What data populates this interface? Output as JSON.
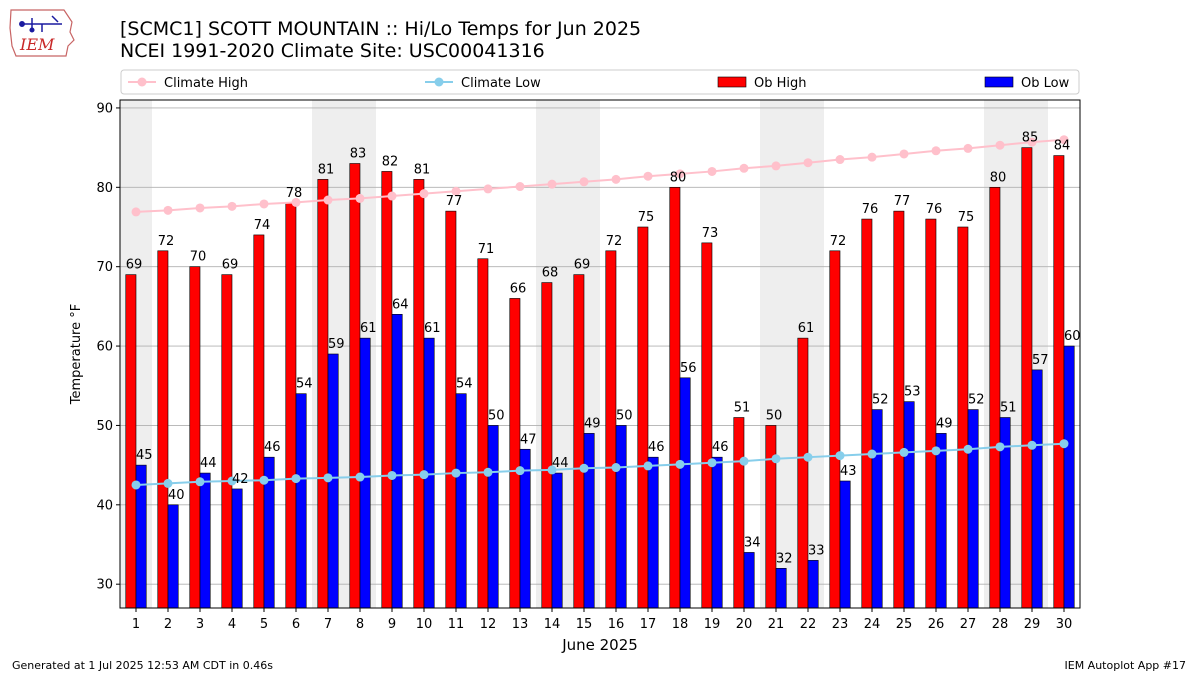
{
  "header": {
    "title": "[SCMC1] SCOTT MOUNTAIN :: Hi/Lo Temps for Jun 2025",
    "subtitle": "NCEI 1991-2020 Climate Site: USC00041316",
    "logo_text": "IEM"
  },
  "footer": {
    "generated": "Generated at 1 Jul 2025 12:53 AM CDT in 0.46s",
    "app": "IEM Autoplot App #17"
  },
  "colors": {
    "ob_high": "#ff0000",
    "ob_low": "#0000ff",
    "climate_high": "#ffc0cb",
    "climate_low": "#87ceeb",
    "weekend_band": "#eeeeee",
    "grid": "#b0b0b0"
  },
  "chart_data": {
    "type": "bar",
    "xlabel": "June 2025",
    "ylabel": "Temperature °F",
    "ylim": [
      27,
      91
    ],
    "yticks": [
      30,
      40,
      50,
      60,
      70,
      80,
      90
    ],
    "grid": true,
    "legend": "top",
    "weekend_days": [
      1,
      7,
      8,
      14,
      15,
      21,
      22,
      28,
      29
    ],
    "categories": [
      "1",
      "2",
      "3",
      "4",
      "5",
      "6",
      "7",
      "8",
      "9",
      "10",
      "11",
      "12",
      "13",
      "14",
      "15",
      "16",
      "17",
      "18",
      "19",
      "20",
      "21",
      "22",
      "23",
      "24",
      "25",
      "26",
      "27",
      "28",
      "29",
      "30"
    ],
    "series": [
      {
        "name": "Ob High",
        "kind": "bar",
        "values": [
          69,
          72,
          70,
          69,
          74,
          78,
          81,
          83,
          82,
          81,
          77,
          71,
          66,
          68,
          69,
          72,
          75,
          80,
          73,
          51,
          50,
          61,
          72,
          76,
          77,
          76,
          75,
          80,
          85,
          84
        ]
      },
      {
        "name": "Ob Low",
        "kind": "bar",
        "values": [
          45,
          40,
          44,
          42,
          46,
          54,
          59,
          61,
          64,
          61,
          54,
          50,
          47,
          44,
          49,
          50,
          46,
          56,
          46,
          34,
          32,
          33,
          43,
          52,
          53,
          49,
          52,
          51,
          57,
          60
        ]
      },
      {
        "name": "Climate High",
        "kind": "line",
        "values": [
          76.9,
          77.1,
          77.4,
          77.6,
          77.9,
          78.1,
          78.4,
          78.6,
          78.9,
          79.2,
          79.5,
          79.8,
          80.1,
          80.4,
          80.7,
          81.0,
          81.4,
          81.7,
          82.0,
          82.4,
          82.7,
          83.1,
          83.5,
          83.8,
          84.2,
          84.6,
          84.9,
          85.3,
          85.7,
          86.0
        ]
      },
      {
        "name": "Climate Low",
        "kind": "line",
        "values": [
          42.5,
          42.7,
          42.9,
          43.0,
          43.1,
          43.3,
          43.4,
          43.5,
          43.7,
          43.8,
          44.0,
          44.1,
          44.3,
          44.4,
          44.6,
          44.7,
          44.9,
          45.1,
          45.3,
          45.5,
          45.8,
          46.0,
          46.2,
          46.4,
          46.6,
          46.8,
          47.0,
          47.3,
          47.5,
          47.7
        ]
      }
    ]
  }
}
